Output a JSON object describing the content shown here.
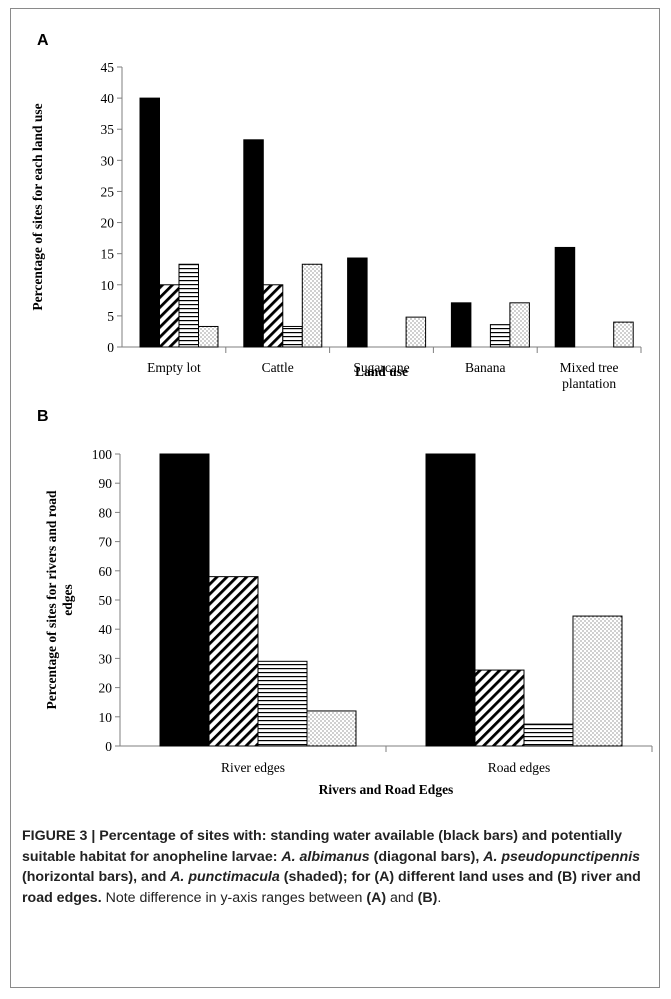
{
  "figure": {
    "panel_a_letter": "A",
    "panel_b_letter": "B",
    "caption": {
      "title_part1": "FIGURE 3 | Percentage of sites with: standing water available (black bars) and potentially suitable habitat for anopheline larvae: ",
      "species1": "A. albimanus",
      "desc1": " (diagonal bars), ",
      "species2": "A. pseudopunctipennis",
      "desc2": " (horizontal bars), and ",
      "species3": "A. punctimacula",
      "desc3": " (shaded); for (A) different land uses and (B) river and road edges.",
      "note_part1": " Note difference in y-axis ranges between ",
      "note_a": "(A)",
      "note_and": " and ",
      "note_b": "(B)",
      "note_end": "."
    }
  },
  "colors": {
    "axis": "#7f7f7f",
    "bar_fill": "#000000",
    "background": "#ffffff"
  },
  "chart_data": [
    {
      "type": "bar",
      "panel": "A",
      "categories": [
        "Empty lot",
        "Cattle",
        "Sugarcane",
        "Banana",
        "Mixed tree plantation"
      ],
      "category_lines": [
        [
          "Empty lot"
        ],
        [
          "Cattle"
        ],
        [
          "Sugarcane"
        ],
        [
          "Banana"
        ],
        [
          "Mixed tree",
          "plantation"
        ]
      ],
      "series": [
        {
          "pattern": "solid",
          "values": [
            40,
            33.3,
            14.3,
            7.1,
            16
          ]
        },
        {
          "pattern": "diagonal",
          "values": [
            10,
            10,
            0,
            0,
            0
          ]
        },
        {
          "pattern": "horizontal",
          "values": [
            13.3,
            3.3,
            0,
            3.6,
            0
          ]
        },
        {
          "pattern": "dotted",
          "values": [
            3.3,
            13.3,
            4.8,
            7.1,
            4
          ]
        }
      ],
      "title": "",
      "xlabel": "Land use",
      "ylabel": "Percentage of sites for each land use",
      "ylim": [
        0,
        45
      ],
      "yticks": [
        0,
        5,
        10,
        15,
        20,
        25,
        30,
        35,
        40,
        45
      ],
      "grid": false,
      "legend": "none"
    },
    {
      "type": "bar",
      "panel": "B",
      "categories": [
        "River edges",
        "Road edges"
      ],
      "category_lines": [
        [
          "River edges"
        ],
        [
          "Road edges"
        ]
      ],
      "series": [
        {
          "pattern": "solid",
          "values": [
            100,
            100
          ]
        },
        {
          "pattern": "diagonal",
          "values": [
            58,
            26
          ]
        },
        {
          "pattern": "horizontal",
          "values": [
            29,
            7.5
          ]
        },
        {
          "pattern": "dotted",
          "values": [
            12,
            44.5
          ]
        }
      ],
      "title": "",
      "xlabel": "Rivers and Road Edges",
      "ylabel_lines": [
        "Percentage of sites for rivers and road",
        "edges"
      ],
      "ylim": [
        0,
        100
      ],
      "yticks": [
        0,
        10,
        20,
        30,
        40,
        50,
        60,
        70,
        80,
        90,
        100
      ],
      "grid": false,
      "legend": "none"
    }
  ]
}
